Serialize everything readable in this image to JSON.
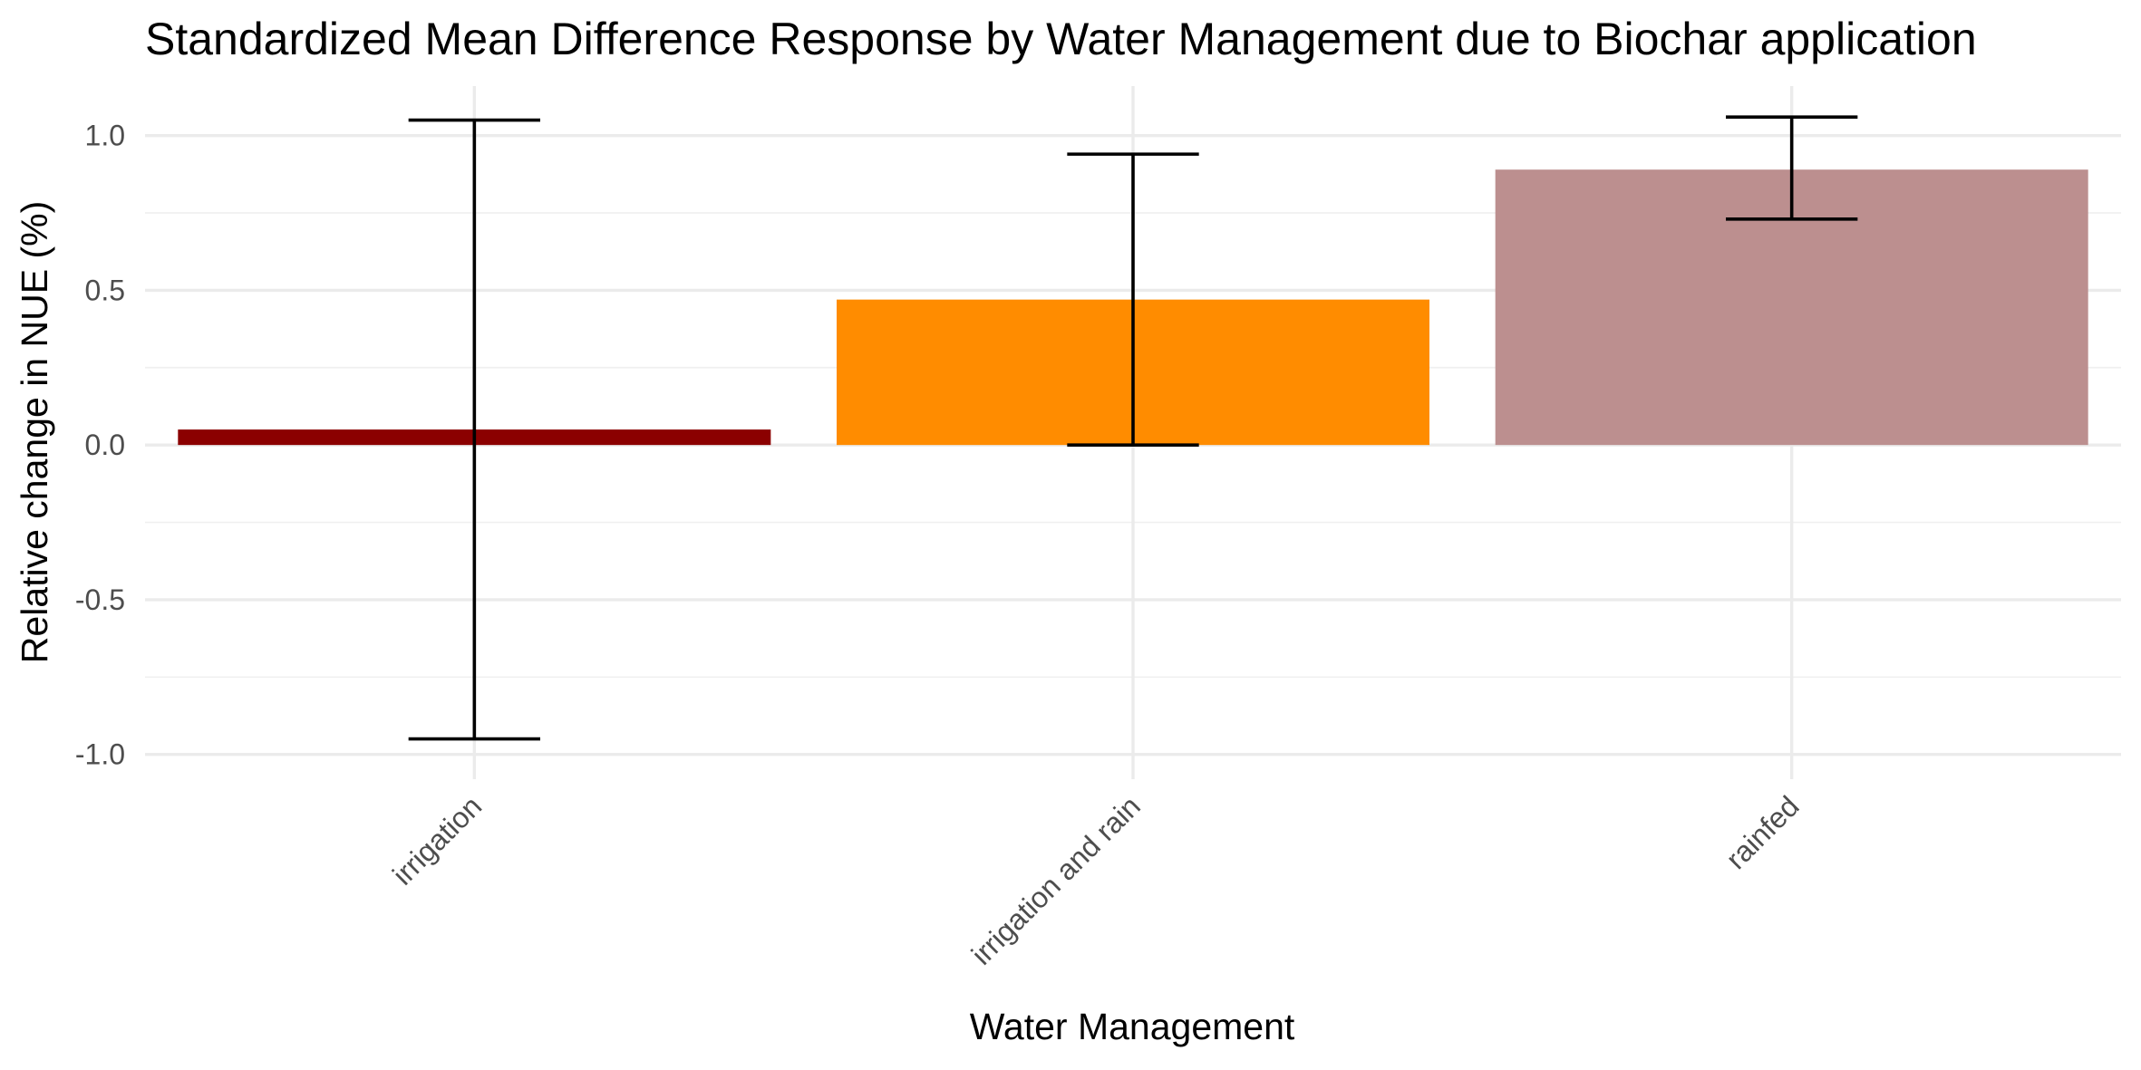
{
  "chart_data": {
    "type": "bar",
    "title": "Standardized Mean Difference Response by Water Management due to Biochar application",
    "xlabel": "Water Management",
    "ylabel": "Relative change in NUE (%)",
    "categories": [
      "irrigation",
      "irrigation and rain",
      "rainfed"
    ],
    "values": [
      0.05,
      0.47,
      0.89
    ],
    "error_low": [
      -0.95,
      0.0,
      0.73
    ],
    "error_high": [
      1.05,
      0.94,
      1.06
    ],
    "colors": [
      "#8b0000",
      "#ff8c00",
      "#bc8f8f"
    ],
    "ylim": [
      -1.08,
      1.16
    ],
    "yticks": [
      -1.0,
      -0.5,
      0.0,
      0.5,
      1.0
    ],
    "ytick_labels": [
      "-1.0",
      "-0.5",
      "0.0",
      "0.5",
      "1.0"
    ],
    "grid": true,
    "legend": "none"
  }
}
